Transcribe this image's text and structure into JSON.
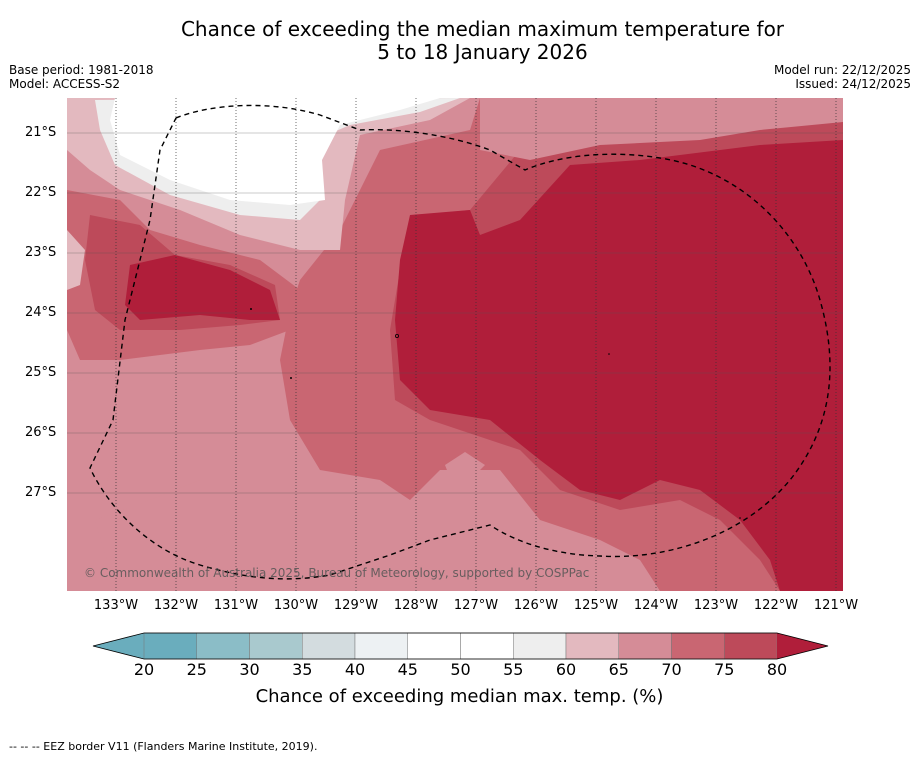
{
  "title": {
    "line1": "Chance of exceeding the median maximum temperature for",
    "line2": "5 to 18 January 2026"
  },
  "meta": {
    "base_period": "Base period: 1981-2018",
    "model": "Model: ACCESS-S2",
    "model_run": "Model run: 22/12/2025",
    "issued": "Issued: 24/12/2025"
  },
  "map": {
    "lon_labels": [
      "133°W",
      "132°W",
      "131°W",
      "130°W",
      "129°W",
      "128°W",
      "127°W",
      "126°W",
      "125°W",
      "124°W",
      "123°W",
      "122°W",
      "121°W"
    ],
    "lat_labels": [
      "21°S",
      "22°S",
      "23°S",
      "24°S",
      "25°S",
      "26°S",
      "27°S"
    ],
    "copyright": "© Commonwealth of Australia 2025, Bureau of Meteorology, supported by COSPPac",
    "colors": {
      "c20": "#6aadbd",
      "c25": "#8bbdc7",
      "c30": "#a9c9ce",
      "c35": "#d3dcdf",
      "c40": "#edf1f3",
      "c45": "#ffffff",
      "c50": "#ffffff",
      "c55": "#eeeeee",
      "c60": "#e3b9bf",
      "c65": "#d58c97",
      "c70": "#c96672",
      "c75": "#bd4a5a",
      "c80": "#b01e3a"
    }
  },
  "colorbar": {
    "ticks": [
      "20",
      "25",
      "30",
      "35",
      "40",
      "45",
      "50",
      "55",
      "60",
      "65",
      "70",
      "75",
      "80"
    ],
    "label": "Chance of exceeding median max. temp. (%)"
  },
  "footnote": "--  --  -- EEZ border V11 (Flanders Marine Institute, 2019)."
}
